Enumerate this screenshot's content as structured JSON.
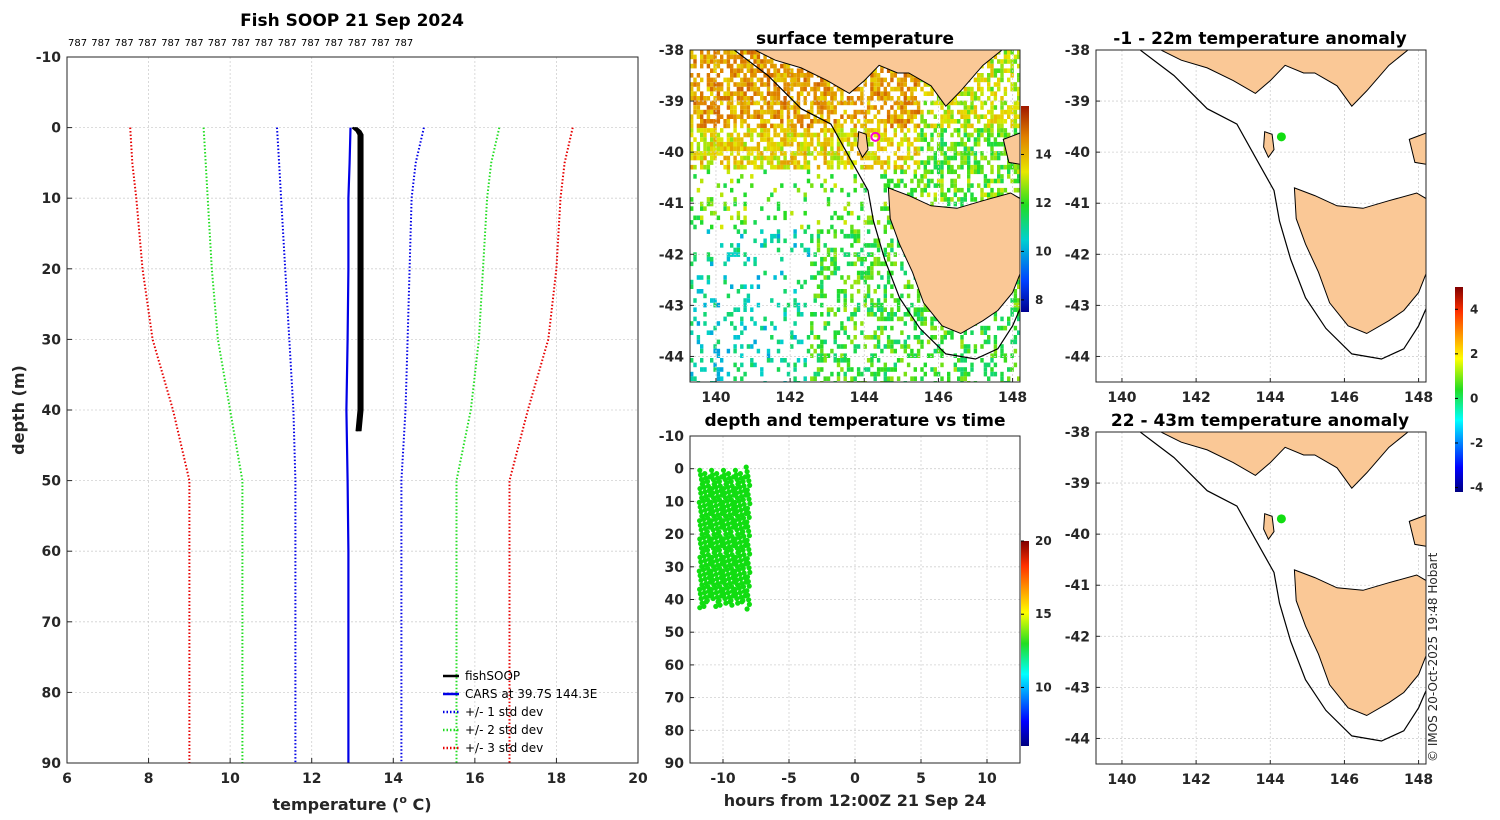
{
  "colors": {
    "land": "#fac896",
    "fishsoop": "#000000",
    "cars": "#0000e6",
    "std1": "#0000e6",
    "std2": "#22dd22",
    "std3": "#e60000",
    "obs_green": "#11dd11",
    "marker": "#ff00cc",
    "grid": "#d0d0d0"
  },
  "footer": {
    "copyright": "© IMOS 20-Oct-2025 19:48 Hobart"
  },
  "chart_data": [
    {
      "id": "profile",
      "type": "line",
      "title": "Fish SOOP 21 Sep 2024",
      "count_labels": [
        "787",
        "787",
        "787",
        "787",
        "787",
        "787",
        "787",
        "787",
        "787",
        "787",
        "787",
        "787",
        "787",
        "787",
        "787"
      ],
      "xlabel": "temperature (",
      "xlabel_sup": "o",
      "xlabel_end": " C)",
      "ylabel": "depth (m)",
      "xlim": [
        6,
        20
      ],
      "ylim": [
        -10,
        90
      ],
      "xticks": [
        "6",
        "8",
        "10",
        "12",
        "14",
        "16",
        "18",
        "20"
      ],
      "yticks": [
        "-10",
        "0",
        "10",
        "20",
        "30",
        "40",
        "50",
        "60",
        "70",
        "80",
        "90"
      ],
      "grid": true,
      "legend_position": "bottom-right",
      "legend": [
        "fishSOOP",
        "CARS at 39.7S 144.3E",
        "+/- 1 std dev",
        "+/- 2 std dev",
        "+/- 3 std dev"
      ],
      "series": [
        {
          "name": "fishSOOP",
          "style": "solid",
          "x": [
            13.0,
            13.1,
            13.15,
            13.15,
            13.15,
            13.15,
            13.1
          ],
          "y": [
            0,
            0.5,
            1,
            10,
            25,
            40,
            43
          ]
        },
        {
          "name": "CARS at 39.7S 144.3E",
          "style": "solid",
          "x": [
            12.95,
            12.93,
            12.9,
            12.9,
            12.88,
            12.85,
            12.88,
            12.9,
            12.9,
            12.9
          ],
          "y": [
            0,
            5,
            10,
            20,
            30,
            40,
            50,
            60,
            75,
            90
          ]
        },
        {
          "name": "+1 std dev",
          "style": "dotted",
          "x": [
            14.75,
            14.55,
            14.45,
            14.4,
            14.35,
            14.3,
            14.2,
            14.2,
            14.2,
            14.2
          ],
          "y": [
            0,
            5,
            10,
            20,
            30,
            40,
            50,
            60,
            75,
            90
          ]
        },
        {
          "name": "-1 std dev",
          "style": "dotted",
          "x": [
            11.15,
            11.2,
            11.25,
            11.35,
            11.45,
            11.55,
            11.6,
            11.6,
            11.6,
            11.6
          ],
          "y": [
            0,
            5,
            10,
            20,
            30,
            40,
            50,
            60,
            75,
            90
          ]
        },
        {
          "name": "+2 std dev",
          "style": "dotted",
          "x": [
            16.6,
            16.4,
            16.3,
            16.2,
            16.1,
            15.9,
            15.55,
            15.55,
            15.55,
            15.55
          ],
          "y": [
            0,
            5,
            10,
            20,
            30,
            40,
            50,
            60,
            75,
            90
          ]
        },
        {
          "name": "-2 std dev",
          "style": "dotted",
          "x": [
            9.35,
            9.4,
            9.45,
            9.55,
            9.7,
            10.0,
            10.3,
            10.3,
            10.3,
            10.3
          ],
          "y": [
            0,
            5,
            10,
            20,
            30,
            40,
            50,
            60,
            75,
            90
          ]
        },
        {
          "name": "+3 std dev",
          "style": "dotted",
          "x": [
            18.4,
            18.2,
            18.1,
            18.0,
            17.8,
            17.3,
            16.85,
            16.85,
            16.85,
            16.85
          ],
          "y": [
            0,
            5,
            10,
            20,
            30,
            40,
            50,
            60,
            75,
            90
          ]
        },
        {
          "name": "-3 std dev",
          "style": "dotted",
          "x": [
            7.55,
            7.6,
            7.7,
            7.85,
            8.1,
            8.6,
            9.0,
            9.0,
            9.0,
            9.0
          ],
          "y": [
            0,
            5,
            10,
            20,
            30,
            40,
            50,
            60,
            75,
            90
          ]
        }
      ]
    },
    {
      "id": "sst_map",
      "type": "heatmap",
      "title": "surface temperature",
      "xlim": [
        139.3,
        148.2
      ],
      "ylim": [
        -44.5,
        -38
      ],
      "xticks": [
        "140",
        "142",
        "144",
        "146",
        "148"
      ],
      "yticks": [
        "-38",
        "-39",
        "-40",
        "-41",
        "-42",
        "-43",
        "-44"
      ],
      "colorbar_range": [
        7.5,
        16
      ],
      "colorbar_ticks": [
        "8",
        "10",
        "12",
        "14"
      ],
      "marker": {
        "lon": 144.3,
        "lat": -39.7
      }
    },
    {
      "id": "depth_time",
      "type": "scatter",
      "title": "depth and temperature vs time",
      "xlabel": "hours from 12:00Z 21 Sep 24",
      "xlim": [
        -12.5,
        12.5
      ],
      "ylim": [
        -10,
        90
      ],
      "xticks": [
        "-10",
        "-5",
        "0",
        "5",
        "10"
      ],
      "yticks": [
        "-10",
        "0",
        "10",
        "20",
        "30",
        "40",
        "50",
        "60",
        "70",
        "80",
        "90"
      ],
      "colorbar_range": [
        6,
        20
      ],
      "colorbar_ticks": [
        "10",
        "15",
        "20"
      ],
      "series": [
        {
          "name": "casts",
          "x": [
            -11.8,
            -11.5,
            -11.2,
            -10.9,
            -10.6,
            -10.3,
            -10.0,
            -9.7,
            -9.4,
            -9.1,
            -8.8,
            -8.5,
            -8.2
          ],
          "depth_min": 0,
          "depth_max": 43,
          "temperature": 13
        }
      ]
    },
    {
      "id": "anomaly_map_1",
      "type": "scatter",
      "title": "-1 - 22m temperature anomaly",
      "xlim": [
        139.3,
        148.2
      ],
      "ylim": [
        -44.5,
        -38
      ],
      "xticks": [
        "140",
        "142",
        "144",
        "146",
        "148"
      ],
      "yticks": [
        "-38",
        "-39",
        "-40",
        "-41",
        "-42",
        "-43",
        "-44"
      ],
      "points": [
        {
          "lon": 144.3,
          "lat": -39.7,
          "anomaly": 0.3
        }
      ]
    },
    {
      "id": "anomaly_map_2",
      "type": "scatter",
      "title": "22 - 43m temperature anomaly",
      "xlim": [
        139.3,
        148.2
      ],
      "ylim": [
        -44.5,
        -38
      ],
      "xticks": [
        "140",
        "142",
        "144",
        "146",
        "148"
      ],
      "yticks": [
        "-38",
        "-39",
        "-40",
        "-41",
        "-42",
        "-43",
        "-44"
      ],
      "points": [
        {
          "lon": 144.3,
          "lat": -39.7,
          "anomaly": 0.3
        }
      ]
    },
    {
      "id": "anomaly_colorbar",
      "type": "heatmap",
      "colorbar_range": [
        -4.2,
        5
      ],
      "colorbar_ticks": [
        "-4",
        "-2",
        "0",
        "2",
        "4"
      ]
    }
  ]
}
